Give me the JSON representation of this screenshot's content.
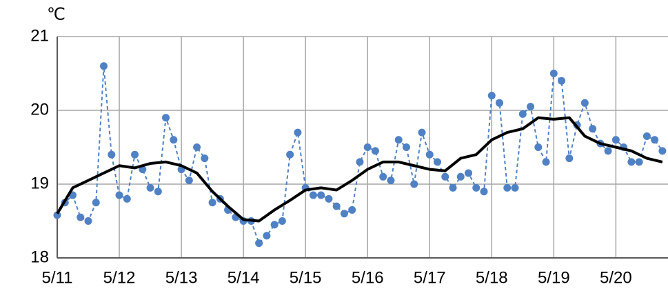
{
  "chart_data": {
    "type": "line",
    "y_label": "℃",
    "xlim": [
      0,
      9.84
    ],
    "ylim": [
      18,
      21
    ],
    "yticks": [
      18,
      19,
      20,
      21
    ],
    "xticks": [
      {
        "value": 0,
        "label": "5/11"
      },
      {
        "value": 1,
        "label": "5/12"
      },
      {
        "value": 2,
        "label": "5/13"
      },
      {
        "value": 3,
        "label": "5/14"
      },
      {
        "value": 4,
        "label": "5/15"
      },
      {
        "value": 5,
        "label": "5/16"
      },
      {
        "value": 6,
        "label": "5/17"
      },
      {
        "value": 7,
        "label": "5/18"
      },
      {
        "value": 8,
        "label": "5/19"
      },
      {
        "value": 9,
        "label": "5/20"
      }
    ],
    "grid": true,
    "series": [
      {
        "color": "#4f81c4",
        "dashed": true,
        "markers": true,
        "width": 2,
        "x": [
          0,
          0.125,
          0.25,
          0.375,
          0.5,
          0.625,
          0.75,
          0.875,
          1,
          1.125,
          1.25,
          1.375,
          1.5,
          1.625,
          1.75,
          1.875,
          2,
          2.125,
          2.25,
          2.375,
          2.5,
          2.625,
          2.75,
          2.875,
          3,
          3.125,
          3.25,
          3.375,
          3.5,
          3.625,
          3.75,
          3.875,
          4,
          4.125,
          4.25,
          4.375,
          4.5,
          4.625,
          4.75,
          4.875,
          5,
          5.125,
          5.25,
          5.375,
          5.5,
          5.625,
          5.75,
          5.875,
          6,
          6.125,
          6.25,
          6.375,
          6.5,
          6.625,
          6.75,
          6.875,
          7,
          7.125,
          7.25,
          7.375,
          7.5,
          7.625,
          7.75,
          7.875,
          8,
          8.125,
          8.25,
          8.375,
          8.5,
          8.625,
          8.75,
          8.875,
          9,
          9.125,
          9.25,
          9.375,
          9.5,
          9.625,
          9.75
        ],
        "values": [
          18.58,
          18.75,
          18.85,
          18.55,
          18.5,
          18.75,
          20.6,
          19.4,
          18.85,
          18.8,
          19.4,
          19.2,
          18.95,
          18.9,
          19.9,
          19.6,
          19.2,
          19.05,
          19.5,
          19.35,
          18.75,
          18.8,
          18.65,
          18.55,
          18.5,
          18.5,
          18.2,
          18.3,
          18.45,
          18.5,
          19.4,
          19.7,
          18.95,
          18.85,
          18.85,
          18.8,
          18.7,
          18.6,
          18.65,
          19.3,
          19.5,
          19.45,
          19.1,
          19.05,
          19.6,
          19.5,
          19.0,
          19.7,
          19.4,
          19.3,
          19.1,
          18.95,
          19.1,
          19.15,
          18.95,
          18.9,
          20.2,
          20.1,
          18.95,
          18.95,
          19.95,
          20.05,
          19.5,
          19.3,
          20.5,
          20.4,
          19.35,
          19.8,
          20.1,
          19.75,
          19.55,
          19.45,
          19.6,
          19.5,
          19.3,
          19.3,
          19.65,
          19.6,
          19.45
        ]
      },
      {
        "color": "#000000",
        "dashed": false,
        "markers": false,
        "width": 4,
        "x": [
          0,
          0.25,
          0.5,
          0.75,
          1,
          1.25,
          1.5,
          1.75,
          2,
          2.25,
          2.5,
          2.75,
          3,
          3.25,
          3.5,
          3.75,
          4,
          4.25,
          4.5,
          4.75,
          5,
          5.25,
          5.5,
          5.75,
          6,
          6.25,
          6.5,
          6.75,
          7,
          7.25,
          7.5,
          7.75,
          8,
          8.25,
          8.5,
          8.75,
          9,
          9.25,
          9.5,
          9.75
        ],
        "values": [
          18.6,
          18.95,
          19.05,
          19.15,
          19.25,
          19.22,
          19.28,
          19.3,
          19.25,
          19.15,
          18.9,
          18.7,
          18.52,
          18.5,
          18.65,
          18.78,
          18.92,
          18.95,
          18.92,
          19.05,
          19.2,
          19.3,
          19.3,
          19.25,
          19.2,
          19.18,
          19.35,
          19.4,
          19.6,
          19.7,
          19.75,
          19.9,
          19.88,
          19.9,
          19.65,
          19.55,
          19.5,
          19.45,
          19.35,
          19.3
        ]
      }
    ]
  }
}
